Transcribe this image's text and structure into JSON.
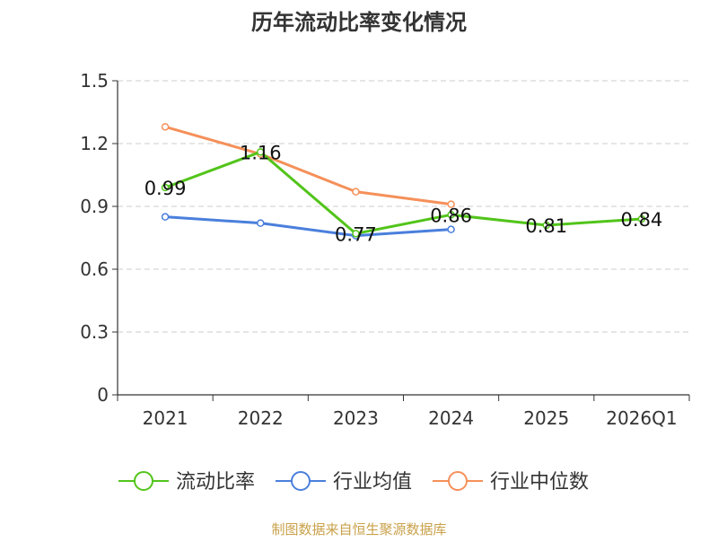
{
  "chart_data": {
    "type": "line",
    "title": "历年流动比率变化情况",
    "categories": [
      "2021",
      "2022",
      "2023",
      "2024",
      "2025",
      "2026Q1"
    ],
    "ylim": [
      0,
      1.5
    ],
    "yticks": [
      "0",
      "0.3",
      "0.6",
      "0.9",
      "1.2",
      "1.5"
    ],
    "grid": true,
    "legend_position": "bottom",
    "series": [
      {
        "name": "流动比率",
        "color": "#52c41a",
        "values": [
          0.99,
          1.16,
          0.77,
          0.86,
          0.81,
          0.84
        ],
        "labels": [
          "0.99",
          "1.16",
          "0.77",
          "0.86",
          "0.81",
          "0.84"
        ]
      },
      {
        "name": "行业均值",
        "color": "#4a7fdc",
        "values": [
          0.85,
          0.82,
          0.76,
          0.79,
          null,
          null
        ]
      },
      {
        "name": "行业中位数",
        "color": "#f5905a",
        "values": [
          1.28,
          1.15,
          0.97,
          0.91,
          null,
          null
        ]
      }
    ],
    "source": "制图数据来自恒生聚源数据库"
  },
  "colors": {
    "axis": "#333333",
    "grid": "#cccccc",
    "source_text": "#c9a14a"
  }
}
